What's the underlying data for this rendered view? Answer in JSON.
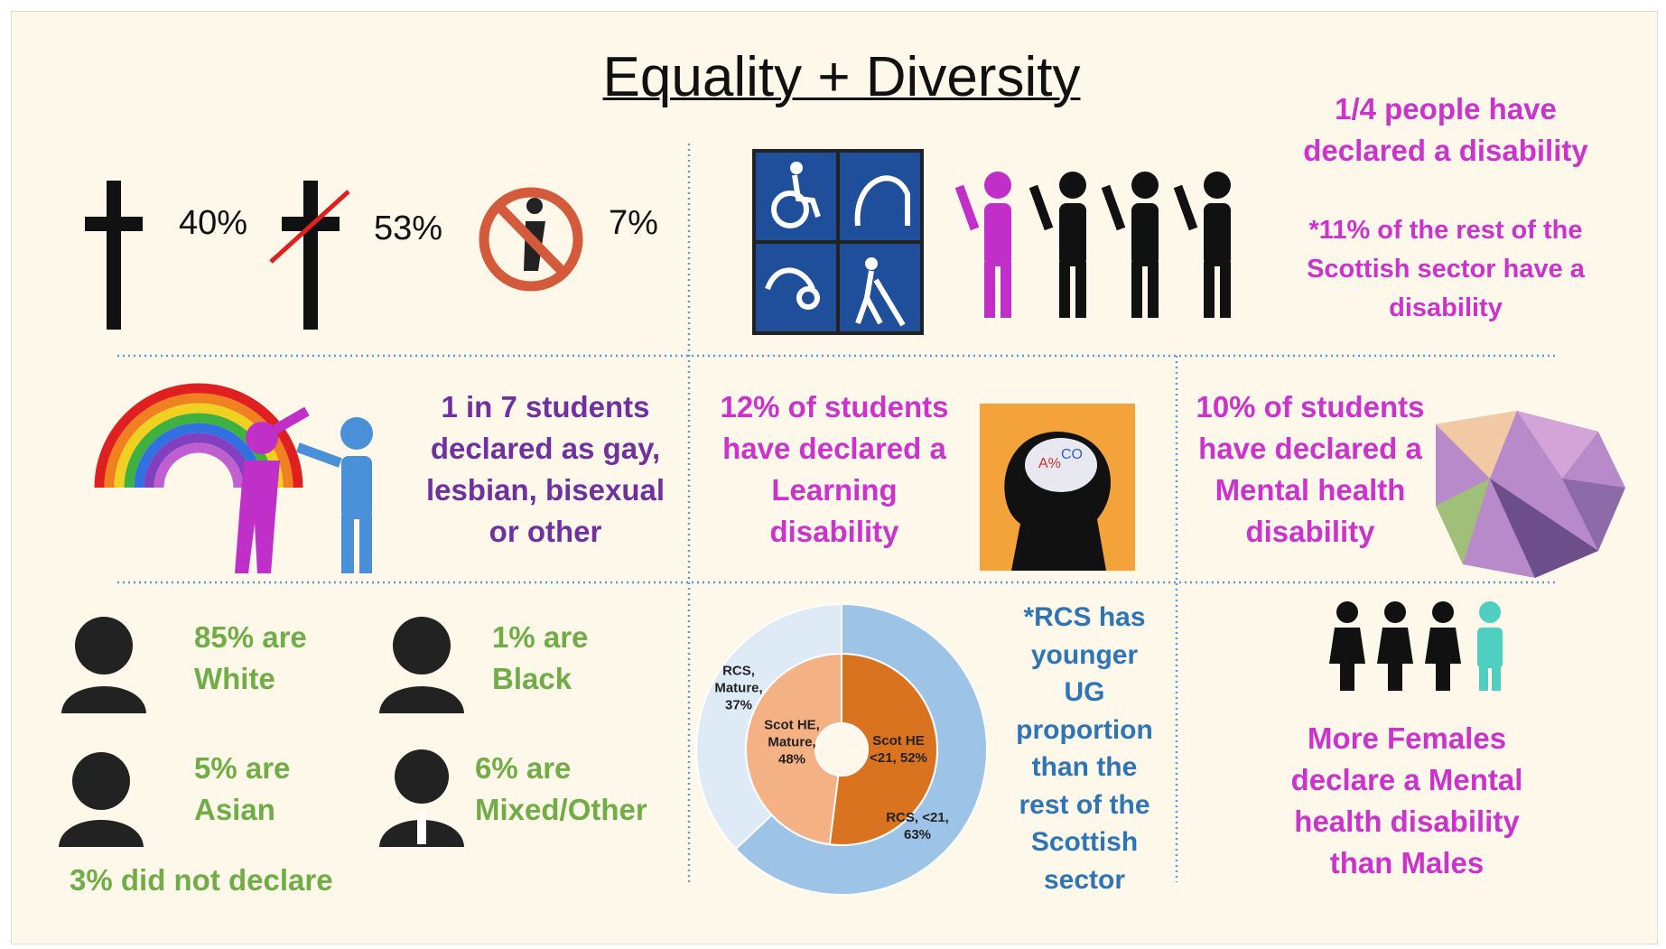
{
  "title": "Equality + Diversity",
  "religion": [
    "40%",
    "53%",
    "7%"
  ],
  "disability": {
    "headline": "1/4 people have declared a disability",
    "note": "*11% of the rest of the Scottish sector have a disability"
  },
  "lgbt": "1 in 7 students declared as gay, lesbian, bisexual or other",
  "learning": "12% of students have declared a Learning disability",
  "mental": "10% of students have declared a Mental health disability",
  "ethnicity": [
    "85% are White",
    "1% are Black",
    "5% are Asian",
    "6% are Mixed/Other",
    "3% did not declare"
  ],
  "chart_data": {
    "type": "donut",
    "series": [
      {
        "name": "RCS",
        "colors": [
          "#9dc3e6",
          "#deebf7"
        ],
        "values": [
          63,
          37
        ],
        "value_labels": [
          "RCS, <21, 63%",
          "RCS, Mature, 37%"
        ]
      },
      {
        "name": "Scot HE",
        "colors": [
          "#d9731f",
          "#f4b183"
        ],
        "values": [
          52,
          48
        ],
        "value_labels": [
          "Scot HE <21, 52%",
          "Scot HE, Mature, 48%"
        ]
      }
    ]
  },
  "age_note": "*RCS has younger UG proportion than the rest of the Scottish sector",
  "gender_note": "More Females declare a Mental health disability than Males"
}
